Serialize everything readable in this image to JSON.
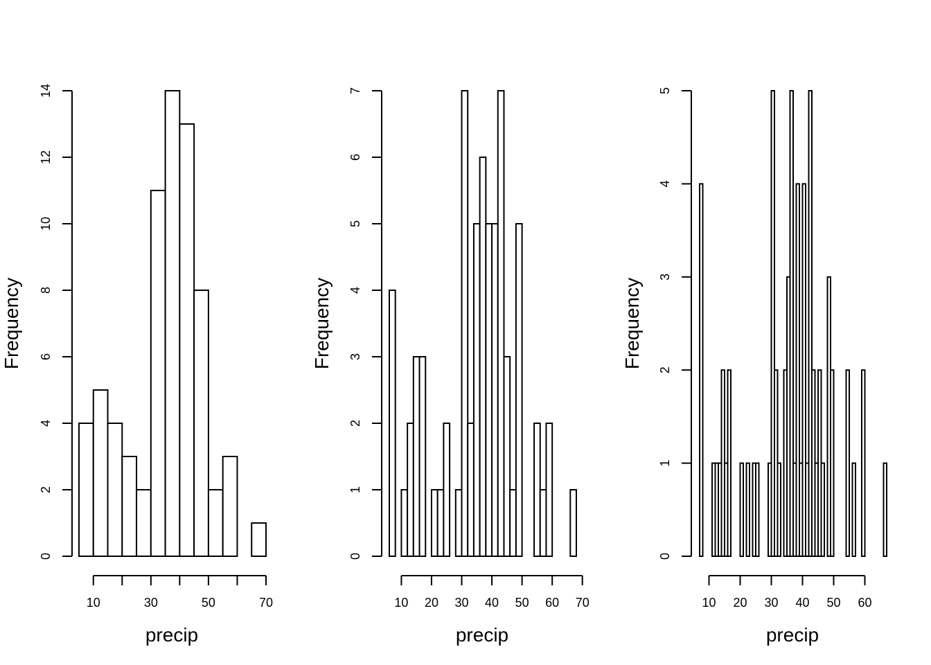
{
  "chart_data": [
    {
      "type": "bar",
      "histogram": true,
      "xlabel": "precip",
      "ylabel": "Frequency",
      "bin_edges": [
        5,
        10,
        15,
        20,
        25,
        30,
        35,
        40,
        45,
        50,
        55,
        60,
        65,
        70
      ],
      "values": [
        4,
        5,
        4,
        3,
        2,
        11,
        14,
        13,
        8,
        2,
        3,
        0,
        1
      ],
      "xticks": [
        10,
        20,
        30,
        40,
        50,
        60,
        70
      ],
      "xtick_labels": [
        "10",
        "30",
        "50",
        "70"
      ],
      "yticks": [
        0,
        2,
        4,
        6,
        8,
        10,
        12,
        14
      ],
      "ylim": [
        0,
        14
      ]
    },
    {
      "type": "bar",
      "histogram": true,
      "xlabel": "precip",
      "ylabel": "Frequency",
      "bin_edges": [
        6,
        8,
        10,
        12,
        14,
        16,
        18,
        20,
        22,
        24,
        26,
        28,
        30,
        32,
        34,
        36,
        38,
        40,
        42,
        44,
        46,
        48,
        50,
        52,
        54,
        56,
        58,
        60,
        62,
        64,
        66,
        68
      ],
      "values": [
        4,
        0,
        1,
        2,
        3,
        3,
        0,
        1,
        1,
        2,
        0,
        1,
        7,
        2,
        5,
        6,
        5,
        5,
        7,
        3,
        1,
        5,
        0,
        0,
        2,
        1,
        2,
        0,
        0,
        0,
        1
      ],
      "xticks": [
        10,
        20,
        30,
        40,
        50,
        60,
        70
      ],
      "xtick_labels": [
        "10",
        "20",
        "30",
        "40",
        "50",
        "60",
        "70"
      ],
      "yticks": [
        0,
        1,
        2,
        3,
        4,
        5,
        6,
        7
      ],
      "ylim": [
        0,
        7
      ]
    },
    {
      "type": "bar",
      "histogram": true,
      "xlabel": "precip",
      "ylabel": "Frequency",
      "bin_edges": [
        7,
        8,
        9,
        10,
        11,
        12,
        13,
        14,
        15,
        16,
        17,
        18,
        19,
        20,
        21,
        22,
        23,
        24,
        25,
        26,
        27,
        28,
        29,
        30,
        31,
        32,
        33,
        34,
        35,
        36,
        37,
        38,
        39,
        40,
        41,
        42,
        43,
        44,
        45,
        46,
        47,
        48,
        49,
        50,
        51,
        52,
        53,
        54,
        55,
        56,
        57,
        58,
        59,
        60,
        61,
        62,
        63,
        64,
        65,
        66,
        67
      ],
      "values": [
        4,
        0,
        0,
        0,
        1,
        1,
        1,
        2,
        1,
        2,
        0,
        0,
        0,
        1,
        0,
        1,
        0,
        1,
        1,
        0,
        0,
        0,
        1,
        5,
        2,
        1,
        0,
        2,
        3,
        5,
        1,
        4,
        1,
        4,
        1,
        5,
        2,
        1,
        2,
        1,
        0,
        3,
        2,
        0,
        0,
        0,
        0,
        2,
        0,
        1,
        0,
        0,
        2,
        0,
        0,
        0,
        0,
        0,
        0,
        1
      ],
      "xticks": [
        10,
        20,
        30,
        40,
        50,
        60
      ],
      "xtick_labels": [
        "10",
        "20",
        "30",
        "40",
        "50",
        "60"
      ],
      "yticks": [
        0,
        1,
        2,
        3,
        4,
        5
      ],
      "ylim": [
        0,
        5
      ]
    }
  ]
}
